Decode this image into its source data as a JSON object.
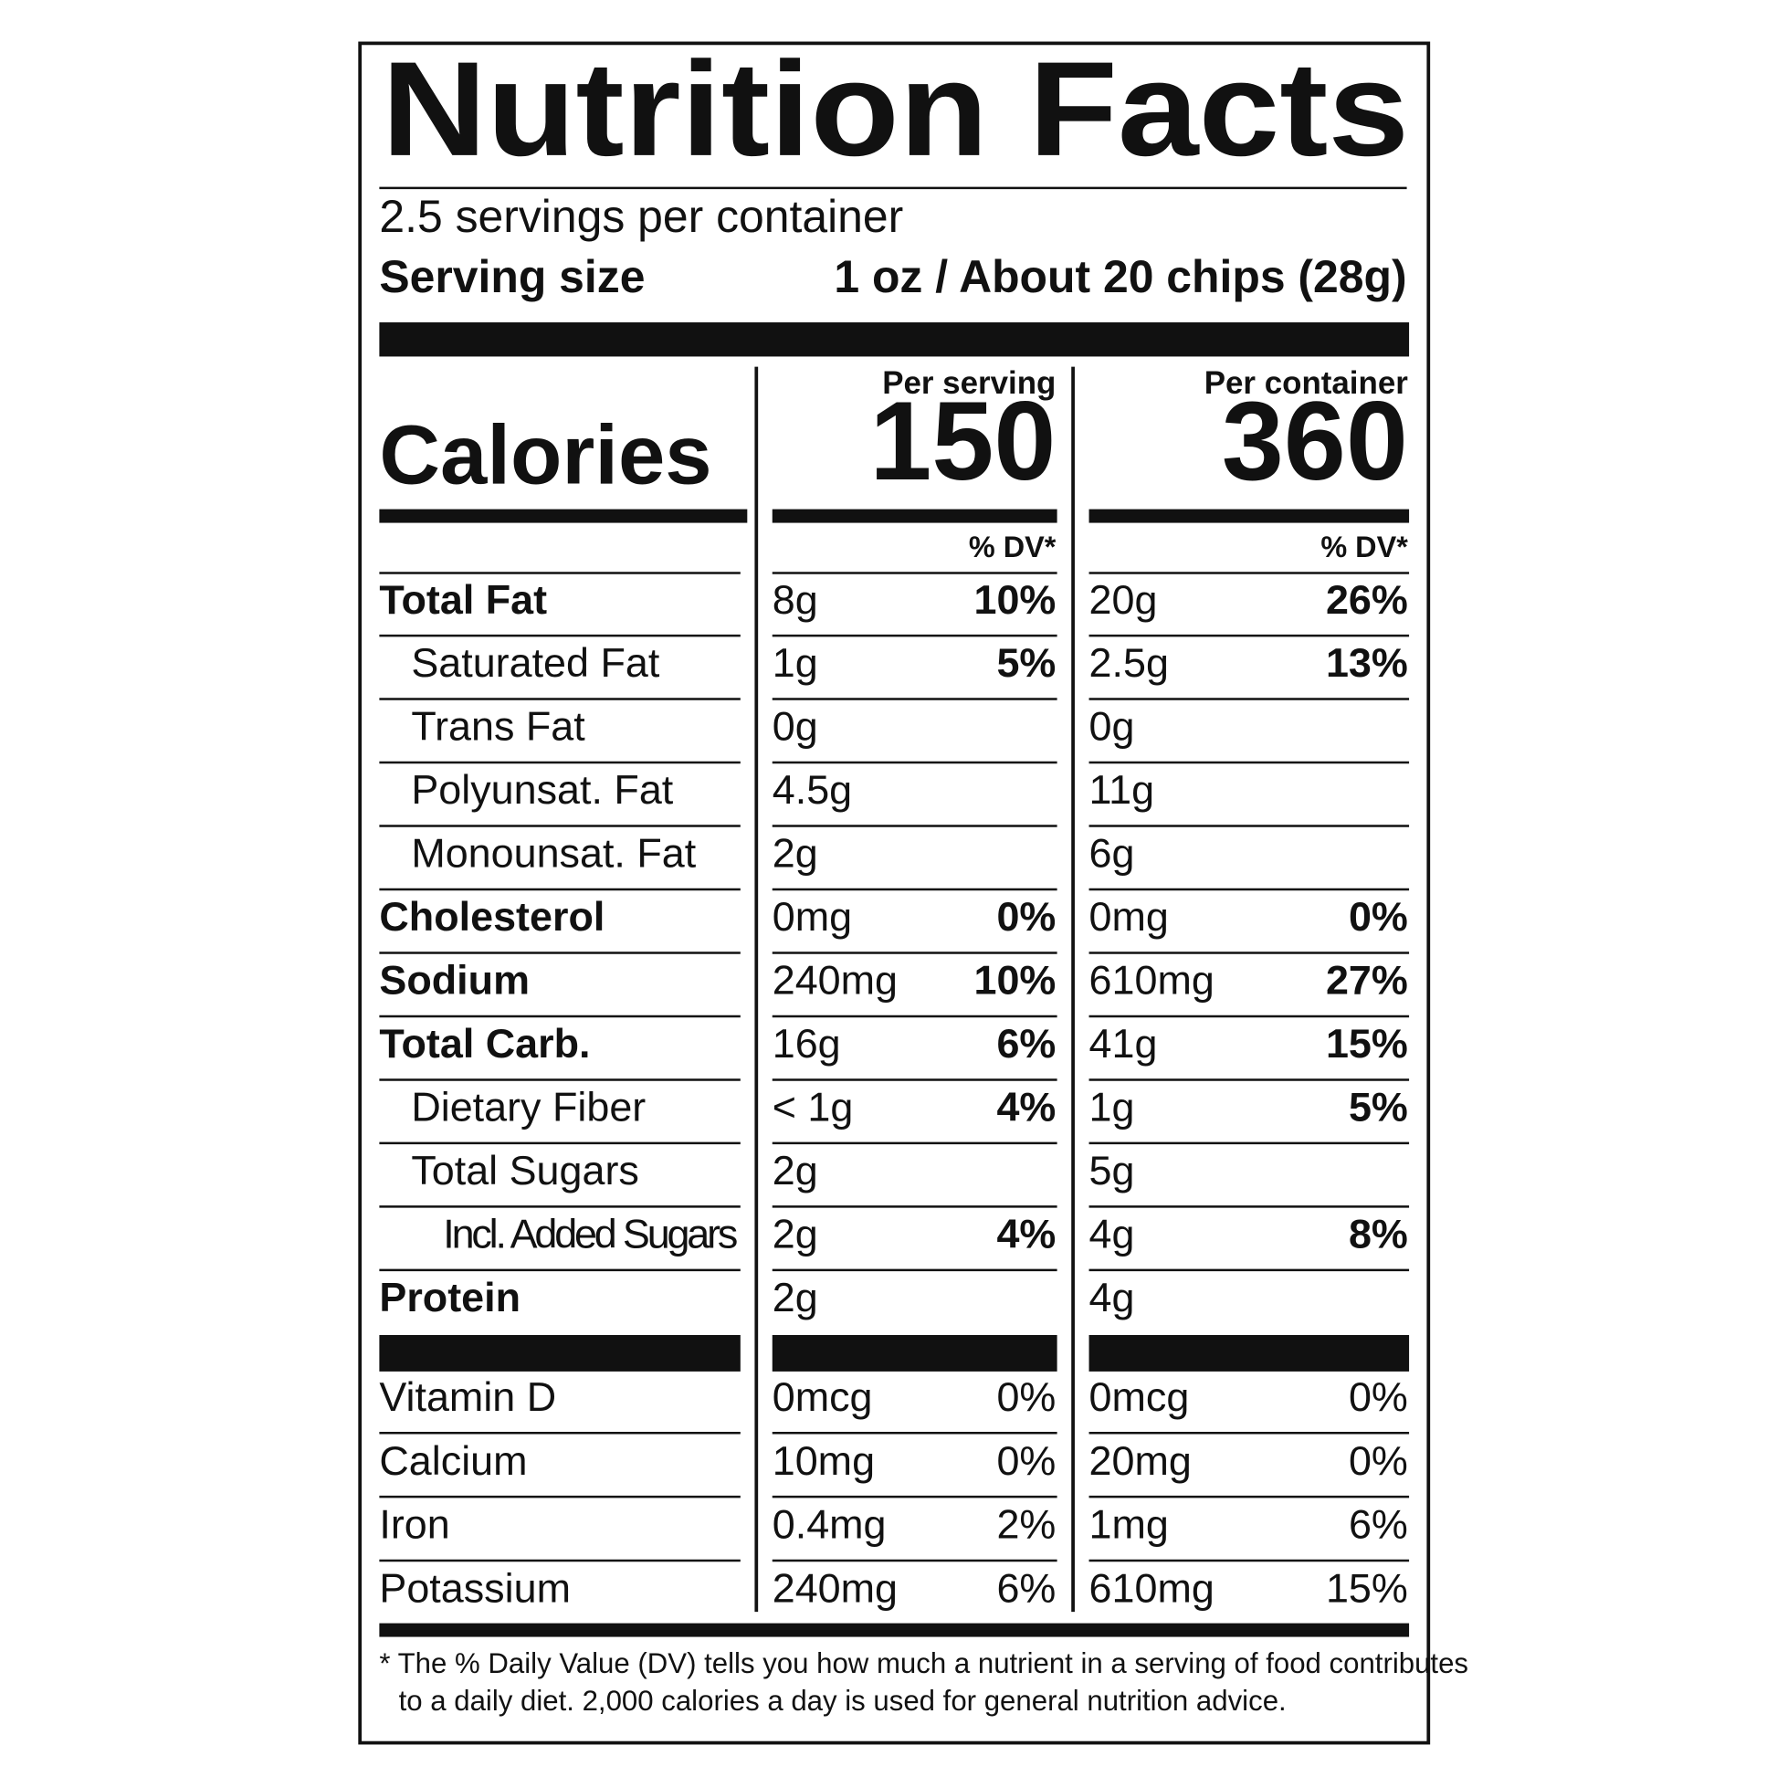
{
  "header": {
    "title": "Nutrition Facts",
    "servings": "2.5 servings per container",
    "serving_size_label": "Serving size",
    "serving_size_value": "1 oz / About 20 chips (28g)"
  },
  "calories": {
    "label": "Calories",
    "per_serving_label": "Per serving",
    "per_serving": "150",
    "per_container_label": "Per container",
    "per_container": "360"
  },
  "dv_header": {
    "serving": "% DV*",
    "container": "% DV*"
  },
  "nutrients": [
    {
      "name": "Total Fat",
      "serving_amount": "8g",
      "serving_dv": "10%",
      "container_amount": "20g",
      "container_dv": "26%"
    },
    {
      "name": "Saturated Fat",
      "serving_amount": "1g",
      "serving_dv": "5%",
      "container_amount": "2.5g",
      "container_dv": "13%"
    },
    {
      "name": "Trans Fat",
      "serving_amount": "0g",
      "container_amount": "0g"
    },
    {
      "name": "Polyunsat. Fat",
      "serving_amount": "4.5g",
      "container_amount": "11g"
    },
    {
      "name": "Monounsat. Fat",
      "serving_amount": "2g",
      "container_amount": "6g"
    },
    {
      "name": "Cholesterol",
      "serving_amount": "0mg",
      "serving_dv": "0%",
      "container_amount": "0mg",
      "container_dv": "0%"
    },
    {
      "name": "Sodium",
      "serving_amount": "240mg",
      "serving_dv": "10%",
      "container_amount": "610mg",
      "container_dv": "27%"
    },
    {
      "name": "Total Carb.",
      "serving_amount": "16g",
      "serving_dv": "6%",
      "container_amount": "41g",
      "container_dv": "15%"
    },
    {
      "name": "Dietary Fiber",
      "serving_amount": "< 1g",
      "serving_dv": "4%",
      "container_amount": "1g",
      "container_dv": "5%"
    },
    {
      "name": "Total Sugars",
      "serving_amount": "2g",
      "container_amount": "5g"
    },
    {
      "name": "Incl. Added Sugars",
      "serving_amount": "2g",
      "serving_dv": "4%",
      "container_amount": "4g",
      "container_dv": "8%"
    },
    {
      "name": "Protein",
      "serving_amount": "2g",
      "container_amount": "4g"
    }
  ],
  "vitamins": [
    {
      "name": "Vitamin D",
      "serving_amount": "0mcg",
      "serving_dv": "0%",
      "container_amount": "0mcg",
      "container_dv": "0%"
    },
    {
      "name": "Calcium",
      "serving_amount": "10mg",
      "serving_dv": "0%",
      "container_amount": "20mg",
      "container_dv": "0%"
    },
    {
      "name": "Iron",
      "serving_amount": "0.4mg",
      "serving_dv": "2%",
      "container_amount": "1mg",
      "container_dv": "6%"
    },
    {
      "name": "Potassium",
      "serving_amount": "240mg",
      "serving_dv": "6%",
      "container_amount": "610mg",
      "container_dv": "15%"
    }
  ],
  "footnote": [
    "* The % Daily Value (DV) tells you how much a nutrient in a serving of food contributes",
    "to a daily diet. 2,000 calories a day is used for general nutrition advice."
  ]
}
